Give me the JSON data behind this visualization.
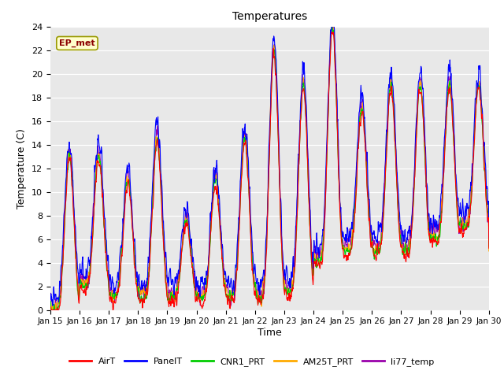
{
  "title": "Temperatures",
  "xlabel": "Time",
  "ylabel": "Temperature (C)",
  "ylim": [
    0,
    24
  ],
  "yticks": [
    0,
    2,
    4,
    6,
    8,
    10,
    12,
    14,
    16,
    18,
    20,
    22,
    24
  ],
  "xticklabels": [
    "Jan 15",
    "Jan 16",
    "Jan 17",
    "Jan 18",
    "Jan 19",
    "Jan 20",
    "Jan 21",
    "Jan 22",
    "Jan 23",
    "Jan 24",
    "Jan 25",
    "Jan 26",
    "Jan 27",
    "Jan 28",
    "Jan 29",
    "Jan 30"
  ],
  "series_colors": {
    "AirT": "#ff0000",
    "PanelT": "#0000ff",
    "CNR1_PRT": "#00cc00",
    "AM25T_PRT": "#ffaa00",
    "li77_temp": "#9900aa"
  },
  "annotation_text": "EP_met",
  "bg_color": "#e8e8e8",
  "n_points": 1440,
  "days": 15,
  "seed": 42
}
